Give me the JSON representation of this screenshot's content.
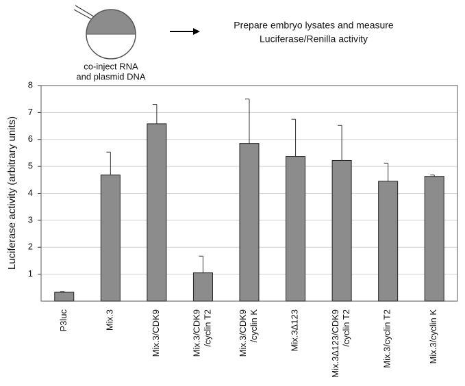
{
  "diagram": {
    "injection_label": [
      "co-inject RNA",
      "and plasmid DNA"
    ],
    "step_label": [
      "Prepare embryo lysates and measure",
      "Luciferase/Renilla activity"
    ]
  },
  "chart_data": {
    "type": "bar",
    "y_label": "Luciferase activity (arbitrary units)",
    "categories": [
      "P3luc",
      "Mix.3",
      "Mix.3/CDK9",
      "Mix.3/CDK9\n/cyclin T2",
      "Mix.3/CDK9\n/cyclin K",
      "Mix.3Δ123",
      "Mix.3Δ123/CDK9\n/cyclin T2",
      "Mix.3/cyclin T2",
      "Mix.3/cyclin K"
    ],
    "values": [
      0.33,
      4.68,
      6.58,
      1.05,
      5.85,
      5.37,
      5.22,
      4.45,
      4.63
    ],
    "errors": [
      0.03,
      0.85,
      0.72,
      0.62,
      1.65,
      1.38,
      1.3,
      0.67,
      0.05
    ],
    "color": "#8c8c8c",
    "ylim": [
      0,
      8
    ],
    "yticks": [
      1,
      2,
      3,
      4,
      5,
      6,
      7,
      8
    ],
    "grid": true
  }
}
